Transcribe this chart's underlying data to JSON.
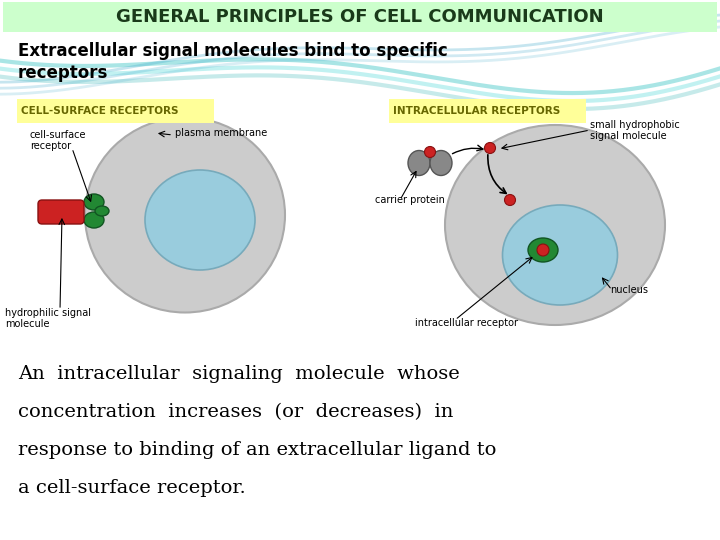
{
  "title": "GENERAL PRINCIPLES OF CELL COMMUNICATION",
  "title_bg": "#ccffcc",
  "title_color": "#1a3a1a",
  "subtitle": "Extracellular signal molecules bind to specific\nreceptors",
  "subtitle_color": "#000000",
  "bg_color": "#ffffff",
  "label_cell_surface": "CELL-SURFACE RECEPTORS",
  "label_intracellular": "INTRACELLULAR RECEPTORS",
  "label_bg": "#ffff99",
  "bottom_text_line1": "An  intracellular  signaling  molecule  whose",
  "bottom_text_line2": "concentration  increases  (or  decreases)  in",
  "bottom_text_line3": "response to binding of an extracellular ligand to",
  "bottom_text_line4": "a cell-surface receptor.",
  "bottom_text_color": "#000000",
  "cell_gray": "#cccccc",
  "cell_edge": "#aaaaaa",
  "nucleus_blue": "#99ccdd",
  "nucleus_edge": "#77aabb",
  "green_receptor": "#228833",
  "red_signal": "#cc2222",
  "gray_protein": "#888888"
}
